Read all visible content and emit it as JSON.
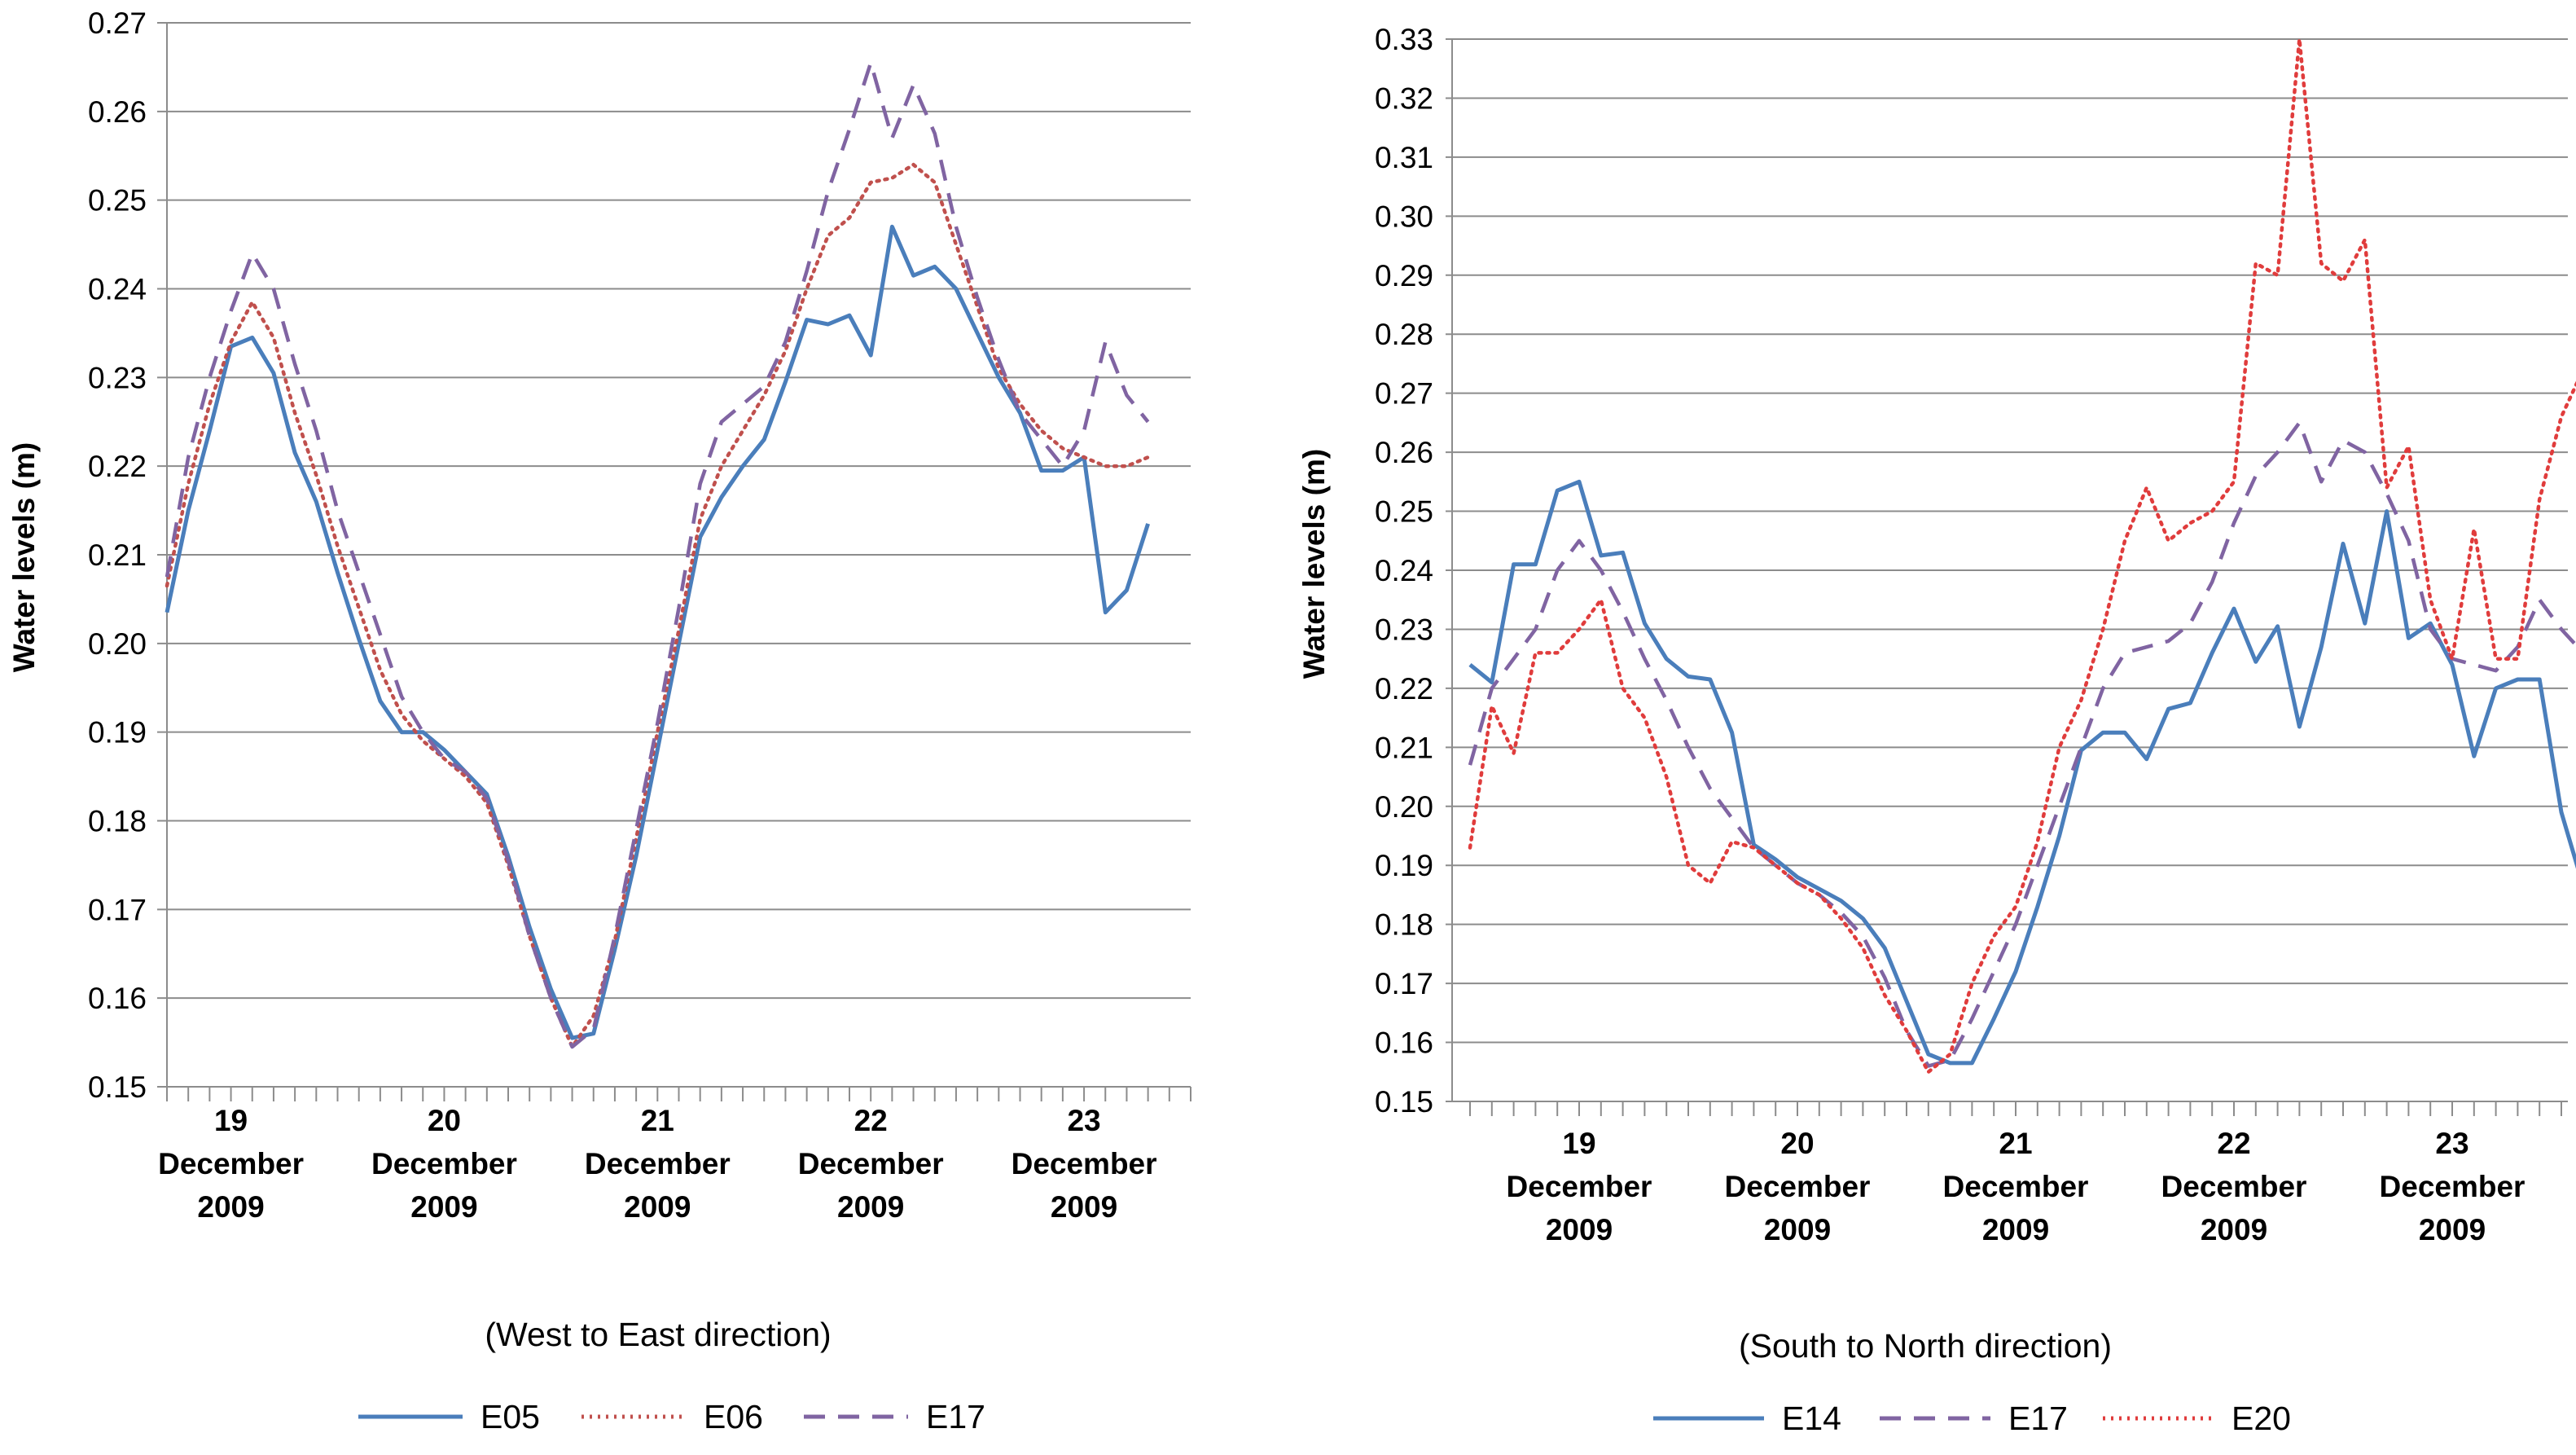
{
  "chart_data": [
    {
      "type": "line",
      "title": "",
      "xlabel": "(West to East direction)",
      "ylabel": "Water levels (m)",
      "ylim": [
        0.15,
        0.27
      ],
      "yticks": [
        "0.15",
        "0.16",
        "0.17",
        "0.18",
        "0.19",
        "0.20",
        "0.21",
        "0.22",
        "0.23",
        "0.24",
        "0.25",
        "0.26",
        "0.27"
      ],
      "x_range": [
        0,
        48
      ],
      "x_ticks": [
        {
          "pos": 3,
          "day": "19",
          "month": "December",
          "year": "2009"
        },
        {
          "pos": 13,
          "day": "20",
          "month": "December",
          "year": "2009"
        },
        {
          "pos": 23,
          "day": "21",
          "month": "December",
          "year": "2009"
        },
        {
          "pos": 33,
          "day": "22",
          "month": "December",
          "year": "2009"
        },
        {
          "pos": 43,
          "day": "23",
          "month": "December",
          "year": "2009"
        }
      ],
      "series": [
        {
          "name": "E05",
          "style": "solid",
          "color": "#4a7ebb",
          "values": [
            0.2035,
            0.215,
            0.224,
            0.2335,
            0.2345,
            0.2305,
            0.2215,
            0.216,
            0.208,
            0.2005,
            0.1935,
            0.19,
            0.19,
            0.188,
            0.1855,
            0.183,
            0.176,
            0.168,
            0.161,
            0.1555,
            0.156,
            0.1655,
            0.176,
            0.188,
            0.2,
            0.212,
            0.2165,
            0.22,
            0.223,
            0.2295,
            0.2365,
            0.236,
            0.237,
            0.2325,
            0.247,
            0.2415,
            0.2425,
            0.24,
            0.235,
            0.23,
            0.226,
            0.2195,
            0.2195,
            0.221,
            0.2035,
            0.206,
            0.2135
          ]
        },
        {
          "name": "E06",
          "style": "dotted",
          "color": "#c0504d",
          "values": [
            0.2065,
            0.218,
            0.227,
            0.234,
            0.2385,
            0.2345,
            0.226,
            0.219,
            0.211,
            0.204,
            0.197,
            0.192,
            0.189,
            0.187,
            0.185,
            0.182,
            0.175,
            0.167,
            0.16,
            0.1545,
            0.158,
            0.1665,
            0.178,
            0.19,
            0.2015,
            0.214,
            0.22,
            0.224,
            0.228,
            0.233,
            0.24,
            0.246,
            0.248,
            0.252,
            0.2525,
            0.254,
            0.252,
            0.245,
            0.238,
            0.231,
            0.227,
            0.224,
            0.222,
            0.221,
            0.22,
            0.22,
            0.221
          ]
        },
        {
          "name": "E17",
          "style": "dashed",
          "color": "#8064a2",
          "values": [
            0.2075,
            0.221,
            0.23,
            0.2375,
            0.244,
            0.24,
            0.2315,
            0.224,
            0.215,
            0.208,
            0.201,
            0.194,
            0.19,
            0.187,
            0.1855,
            0.1825,
            0.1755,
            0.167,
            0.16,
            0.1545,
            0.1565,
            0.167,
            0.179,
            0.191,
            0.204,
            0.218,
            0.225,
            0.227,
            0.229,
            0.234,
            0.242,
            0.251,
            0.258,
            0.2655,
            0.257,
            0.263,
            0.2575,
            0.247,
            0.239,
            0.232,
            0.226,
            0.223,
            0.22,
            0.224,
            0.234,
            0.228,
            0.225
          ]
        }
      ],
      "legend": [
        "E05",
        "E06",
        "E17"
      ],
      "legend_position": "bottom"
    },
    {
      "type": "line",
      "title": "",
      "xlabel": "(South to North direction)",
      "ylabel": "Water levels (m)",
      "ylim": [
        0.15,
        0.33
      ],
      "yticks": [
        "0.15",
        "0.16",
        "0.17",
        "0.18",
        "0.19",
        "0.20",
        "0.21",
        "0.22",
        "0.23",
        "0.24",
        "0.25",
        "0.26",
        "0.27",
        "0.28",
        "0.29",
        "0.30",
        "0.31",
        "0.32",
        "0.33"
      ],
      "x_range": [
        0,
        50
      ],
      "x_ticks": [
        {
          "pos": 5,
          "day": "19",
          "month": "December",
          "year": "2009"
        },
        {
          "pos": 15,
          "day": "20",
          "month": "December",
          "year": "2009"
        },
        {
          "pos": 25,
          "day": "21",
          "month": "December",
          "year": "2009"
        },
        {
          "pos": 35,
          "day": "22",
          "month": "December",
          "year": "2009"
        },
        {
          "pos": 45,
          "day": "23",
          "month": "December",
          "year": "2009"
        }
      ],
      "series": [
        {
          "name": "E14",
          "style": "solid",
          "color": "#4a7ebb",
          "values": [
            0.224,
            0.221,
            0.241,
            0.241,
            0.2535,
            0.255,
            0.2425,
            0.243,
            0.231,
            0.225,
            0.222,
            0.2215,
            0.2125,
            0.1935,
            0.191,
            0.188,
            0.186,
            0.184,
            0.181,
            0.176,
            0.167,
            0.158,
            0.1565,
            0.1565,
            0.164,
            0.172,
            0.183,
            0.195,
            0.2095,
            0.2125,
            0.2125,
            0.208,
            0.2165,
            0.2175,
            0.226,
            0.2335,
            0.2245,
            0.2305,
            0.2135,
            0.227,
            0.2445,
            0.231,
            0.25,
            0.2285,
            0.231,
            0.224,
            0.2085,
            0.22,
            0.2215,
            0.2215,
            0.199,
            0.1865
          ]
        },
        {
          "name": "E17",
          "style": "dashed",
          "color": "#8064a2",
          "values": [
            0.207,
            0.22,
            0.225,
            0.23,
            0.24,
            0.245,
            0.24,
            0.233,
            0.225,
            0.218,
            0.21,
            0.203,
            0.198,
            0.193,
            0.19,
            0.187,
            0.185,
            0.182,
            0.178,
            0.171,
            0.162,
            0.156,
            0.157,
            0.164,
            0.172,
            0.18,
            0.19,
            0.2,
            0.21,
            0.22,
            0.226,
            0.227,
            0.228,
            0.231,
            0.238,
            0.248,
            0.256,
            0.26,
            0.265,
            0.255,
            0.262,
            0.26,
            0.253,
            0.245,
            0.23,
            0.225,
            0.224,
            0.223,
            0.227,
            0.235,
            0.23,
            0.226
          ]
        },
        {
          "name": "E20",
          "style": "dotted",
          "color": "#e03c3c",
          "values": [
            0.193,
            0.217,
            0.209,
            0.226,
            0.226,
            0.23,
            0.235,
            0.22,
            0.215,
            0.205,
            0.19,
            0.187,
            0.194,
            0.193,
            0.19,
            0.187,
            0.185,
            0.181,
            0.176,
            0.168,
            0.162,
            0.155,
            0.158,
            0.17,
            0.178,
            0.183,
            0.194,
            0.21,
            0.218,
            0.23,
            0.245,
            0.254,
            0.245,
            0.248,
            0.25,
            0.255,
            0.292,
            0.29,
            0.33,
            0.292,
            0.289,
            0.296,
            0.254,
            0.261,
            0.235,
            0.225,
            0.247,
            0.225,
            0.225,
            0.252,
            0.266,
            0.274
          ]
        }
      ],
      "legend": [
        "E14",
        "E17",
        "E20"
      ],
      "legend_position": "bottom"
    }
  ]
}
